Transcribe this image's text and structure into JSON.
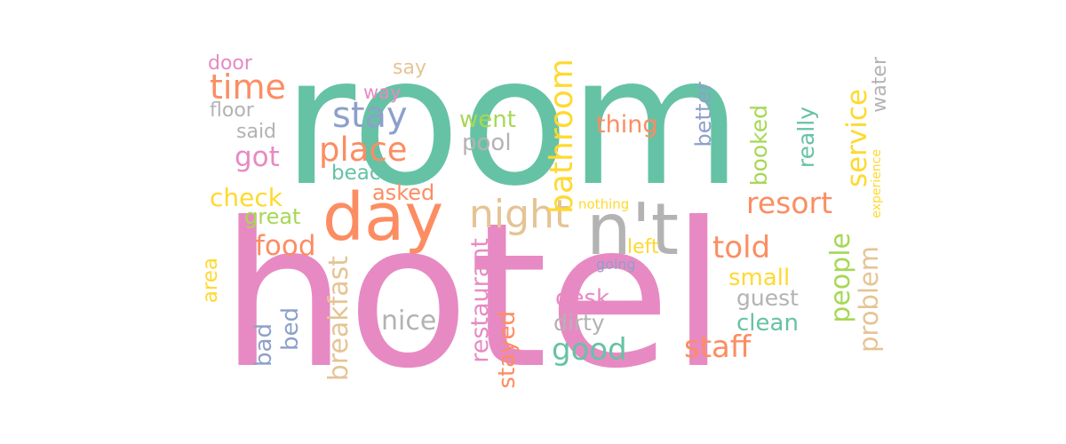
{
  "palette": {
    "teal": "#66c2a5",
    "orange": "#fc8d62",
    "blue": "#8da0cb",
    "pink": "#e78ac3",
    "green": "#a6d854",
    "yellow": "#ffd92f",
    "tan": "#e5c494",
    "gray": "#b3b3b3"
  },
  "words": [
    {
      "text": "room",
      "color": "#66c2a5"
    },
    {
      "text": "hotel",
      "color": "#e78ac3"
    },
    {
      "text": "day",
      "color": "#fc8d62"
    },
    {
      "text": "n't",
      "color": "#b3b3b3"
    },
    {
      "text": "night",
      "color": "#e5c494"
    },
    {
      "text": "stay",
      "color": "#8da0cb"
    },
    {
      "text": "time",
      "color": "#fc8d62"
    },
    {
      "text": "place",
      "color": "#fc8d62"
    },
    {
      "text": "bathroom",
      "color": "#ffd92f"
    },
    {
      "text": "service",
      "color": "#ffd92f"
    },
    {
      "text": "resort",
      "color": "#fc8d62"
    },
    {
      "text": "told",
      "color": "#fc8d62"
    },
    {
      "text": "staff",
      "color": "#fc8d62"
    },
    {
      "text": "good",
      "color": "#66c2a5"
    },
    {
      "text": "food",
      "color": "#fc8d62"
    },
    {
      "text": "breakfast",
      "color": "#e5c494"
    },
    {
      "text": "restaurant",
      "color": "#e78ac3"
    },
    {
      "text": "people",
      "color": "#a6d854"
    },
    {
      "text": "problem",
      "color": "#e5c494"
    },
    {
      "text": "nice",
      "color": "#b3b3b3"
    },
    {
      "text": "got",
      "color": "#e78ac3"
    },
    {
      "text": "check",
      "color": "#ffd92f"
    },
    {
      "text": "went",
      "color": "#a6d854"
    },
    {
      "text": "pool",
      "color": "#b3b3b3"
    },
    {
      "text": "thing",
      "color": "#fc8d62"
    },
    {
      "text": "beach",
      "color": "#66c2a5"
    },
    {
      "text": "asked",
      "color": "#fc8d62"
    },
    {
      "text": "great",
      "color": "#a6d854"
    },
    {
      "text": "small",
      "color": "#ffd92f"
    },
    {
      "text": "clean",
      "color": "#66c2a5"
    },
    {
      "text": "guest",
      "color": "#b3b3b3"
    },
    {
      "text": "desk",
      "color": "#e78ac3"
    },
    {
      "text": "dirty",
      "color": "#b3b3b3"
    },
    {
      "text": "stayed",
      "color": "#fc8d62"
    },
    {
      "text": "bad",
      "color": "#8da0cb"
    },
    {
      "text": "bed",
      "color": "#8da0cb"
    },
    {
      "text": "area",
      "color": "#ffd92f"
    },
    {
      "text": "really",
      "color": "#66c2a5"
    },
    {
      "text": "booked",
      "color": "#a6d854"
    },
    {
      "text": "better",
      "color": "#8da0cb"
    },
    {
      "text": "water",
      "color": "#b3b3b3"
    },
    {
      "text": "experience",
      "color": "#ffd92f"
    },
    {
      "text": "door",
      "color": "#e78ac3"
    },
    {
      "text": "floor",
      "color": "#b3b3b3"
    },
    {
      "text": "said",
      "color": "#b3b3b3"
    },
    {
      "text": "say",
      "color": "#e5c494"
    },
    {
      "text": "way",
      "color": "#e78ac3"
    },
    {
      "text": "nothing",
      "color": "#ffd92f"
    },
    {
      "text": "left",
      "color": "#ffd92f"
    },
    {
      "text": "going",
      "color": "#8da0cb"
    }
  ]
}
